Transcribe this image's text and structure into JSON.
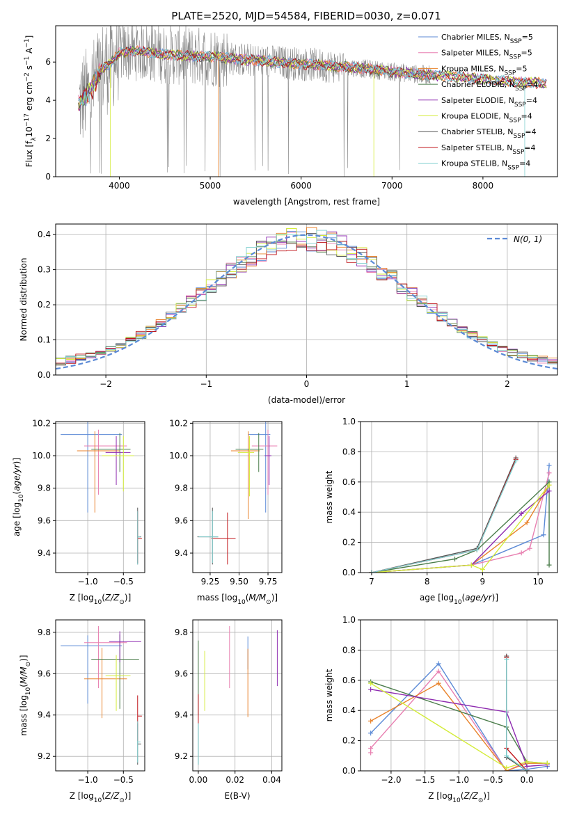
{
  "title": "PLATE=2520, MJD=54584, FIBERID=0030, z=0.071",
  "colors": [
    "#5b8ad6",
    "#e87fb0",
    "#e8822a",
    "#4a7c4a",
    "#8e2bb0",
    "#d4ec3a",
    "#555555",
    "#c0151a",
    "#7ecfcf"
  ],
  "chart_data": [
    {
      "type": "line",
      "title": "PLATE=2520, MJD=54584, FIBERID=0030, z=0.071",
      "xlabel": "wavelength [Angstrom, rest frame]",
      "ylabel": "Flux [f_λ 10^-17 erg cm^-2 s^-1 A^-1]",
      "xlim": [
        3300,
        8820
      ],
      "ylim": [
        0,
        7.9
      ],
      "xticks": [
        4000,
        5000,
        6000,
        7000,
        8000
      ],
      "yticks": [
        0,
        2,
        4,
        6
      ],
      "legend_position": "right",
      "series": [
        {
          "name": "Chabrier MILES, N_SSP=5"
        },
        {
          "name": "Salpeter MILES, N_SSP=5"
        },
        {
          "name": "Kroupa MILES, N_SSP=5"
        },
        {
          "name": "Chabrier ELODIE, N_SSP=4"
        },
        {
          "name": "Salpeter ELODIE, N_SSP=4"
        },
        {
          "name": "Kroupa ELODIE, N_SSP=4"
        },
        {
          "name": "Chabrier STELIB, N_SSP=4"
        },
        {
          "name": "Salpeter STELIB, N_SSP=4"
        },
        {
          "name": "Kroupa STELIB, N_SSP=4"
        }
      ],
      "continuum": {
        "x": [
          3550,
          3700,
          3800,
          3900,
          4000,
          4200,
          4500,
          4800,
          5000,
          5300,
          5600,
          6000,
          6300,
          6600,
          6900,
          7200,
          7500,
          7800,
          8100,
          8400,
          8650
        ],
        "y": [
          3.8,
          4.6,
          5.6,
          5.9,
          6.5,
          6.6,
          6.4,
          6.3,
          6.3,
          6.15,
          6.05,
          5.9,
          5.8,
          5.7,
          5.55,
          5.4,
          5.3,
          5.2,
          5.05,
          4.95,
          4.9
        ]
      }
    },
    {
      "type": "line",
      "xlabel": "(data-model)/error",
      "ylabel": "Normed distribution",
      "xlim": [
        -2.5,
        2.5
      ],
      "ylim": [
        0,
        0.43
      ],
      "xticks": [
        -2,
        -1,
        0,
        1,
        2
      ],
      "yticks": [
        0.0,
        0.1,
        0.2,
        0.3,
        0.4
      ],
      "legend": "N(0, 1)",
      "legend_position": "top-right",
      "bins": {
        "start": -2.5,
        "width": 0.1,
        "count": 50
      },
      "reference": {
        "mean": 0,
        "sigma": 1
      }
    },
    {
      "type": "scatter",
      "xlabel": "Z [log10(Z/Z⊙)]",
      "ylabel": "age [log10(age/yr)]",
      "xlim": [
        -1.45,
        -0.2
      ],
      "ylim": [
        9.28,
        10.21
      ],
      "xticks": [
        -1.0,
        -0.5
      ],
      "yticks": [
        9.4,
        9.6,
        9.8,
        10.0,
        10.2
      ],
      "points": [
        {
          "x": -1.0,
          "y": 10.13,
          "xerr": [
            0.38,
            0.48
          ],
          "yerr": [
            0.48,
            0.12
          ]
        },
        {
          "x": -0.85,
          "y": 10.06,
          "xerr": [
            0.2,
            0.4
          ],
          "yerr": [
            0.3,
            0.1
          ]
        },
        {
          "x": -0.9,
          "y": 10.03,
          "xerr": [
            0.25,
            0.35
          ],
          "yerr": [
            0.38,
            0.12
          ]
        },
        {
          "x": -0.55,
          "y": 10.04,
          "xerr": [
            0.4,
            0.15
          ],
          "yerr": [
            0.14,
            0.1
          ]
        },
        {
          "x": -0.6,
          "y": 10.02,
          "xerr": [
            0.15,
            0.2
          ],
          "yerr": [
            0.2,
            0.1
          ]
        },
        {
          "x": -0.5,
          "y": 10.0,
          "xerr": [
            0.3,
            0.15
          ],
          "yerr": [
            0.22,
            0.12
          ]
        },
        {
          "x": -0.3,
          "y": 9.5,
          "xerr": [
            0.0,
            0.05
          ],
          "yerr": [
            0.17,
            0.18
          ]
        },
        {
          "x": -0.3,
          "y": 9.49,
          "xerr": [
            0.0,
            0.06
          ],
          "yerr": [
            0.15,
            0.17
          ]
        },
        {
          "x": -0.3,
          "y": 9.5,
          "xerr": [
            0.0,
            0.04
          ],
          "yerr": [
            0.17,
            0.16
          ]
        }
      ]
    },
    {
      "type": "scatter",
      "xlabel": "mass [log10(M/M⊙)]",
      "ylabel": "",
      "xlim": [
        9.1,
        9.87
      ],
      "ylim": [
        9.28,
        10.21
      ],
      "xticks": [
        9.25,
        9.5,
        9.75
      ],
      "yticks": [
        9.4,
        9.6,
        9.8,
        10.0,
        10.2
      ],
      "points": [
        {
          "x": 9.73,
          "y": 10.13,
          "xerr": [
            0.15,
            0.04
          ],
          "yerr": [
            0.48,
            0.12
          ]
        },
        {
          "x": 9.75,
          "y": 10.06,
          "xerr": [
            0.14,
            0.08
          ],
          "yerr": [
            0.3,
            0.1
          ]
        },
        {
          "x": 9.58,
          "y": 10.03,
          "xerr": [
            0.15,
            0.1
          ],
          "yerr": [
            0.42,
            0.12
          ]
        },
        {
          "x": 9.67,
          "y": 10.04,
          "xerr": [
            0.2,
            0.04
          ],
          "yerr": [
            0.14,
            0.1
          ]
        },
        {
          "x": 9.76,
          "y": 10.0,
          "xerr": [
            0.04,
            0.02
          ],
          "yerr": [
            0.18,
            0.12
          ]
        },
        {
          "x": 9.59,
          "y": 10.02,
          "xerr": [
            0.1,
            0.04
          ],
          "yerr": [
            0.27,
            0.1
          ]
        },
        {
          "x": 9.27,
          "y": 9.5,
          "xerr": [
            0.13,
            0.05
          ],
          "yerr": [
            0.17,
            0.18
          ]
        },
        {
          "x": 9.4,
          "y": 9.49,
          "xerr": [
            0.14,
            0.07
          ],
          "yerr": [
            0.16,
            0.16
          ]
        },
        {
          "x": 9.27,
          "y": 9.5,
          "xerr": [
            0.12,
            0.05
          ],
          "yerr": [
            0.16,
            0.16
          ]
        }
      ]
    },
    {
      "type": "line",
      "xlabel": "age [log10(age/yr)]",
      "ylabel": "mass weight",
      "xlim": [
        6.8,
        10.35
      ],
      "ylim": [
        0,
        1
      ],
      "xticks": [
        7,
        8,
        9,
        10
      ],
      "yticks": [
        0.0,
        0.2,
        0.4,
        0.6,
        0.8,
        1.0
      ],
      "series": [
        {
          "x": [
            7.0,
            8.8,
            10.1,
            10.2
          ],
          "y": [
            0.0,
            0.05,
            0.25,
            0.71
          ]
        },
        {
          "x": [
            7.0,
            8.8,
            9.7,
            9.85,
            10.2
          ],
          "y": [
            0.0,
            0.05,
            0.13,
            0.16,
            0.66
          ]
        },
        {
          "x": [
            7.0,
            8.8,
            9.8,
            10.2
          ],
          "y": [
            0.0,
            0.05,
            0.33,
            0.58
          ]
        },
        {
          "x": [
            7.0,
            8.5,
            8.9,
            10.2,
            10.2
          ],
          "y": [
            0.0,
            0.09,
            0.15,
            0.6,
            0.05
          ]
        },
        {
          "x": [
            7.0,
            8.8,
            9.7,
            10.2
          ],
          "y": [
            0.0,
            0.05,
            0.39,
            0.54
          ]
        },
        {
          "x": [
            7.0,
            8.8,
            9.0,
            10.2
          ],
          "y": [
            0.0,
            0.05,
            0.02,
            0.58
          ]
        },
        {
          "x": [
            7.0,
            8.9,
            9.6
          ],
          "y": [
            0.0,
            0.16,
            0.76
          ]
        },
        {
          "x": [
            7.0,
            8.9,
            9.6
          ],
          "y": [
            0.0,
            0.15,
            0.75
          ]
        },
        {
          "x": [
            7.0,
            8.9,
            9.6
          ],
          "y": [
            0.0,
            0.15,
            0.74
          ]
        }
      ]
    },
    {
      "type": "scatter",
      "xlabel": "Z [log10(Z/Z⊙)]",
      "ylabel": "mass [log10(M/M⊙)]",
      "xlim": [
        -1.45,
        -0.2
      ],
      "ylim": [
        9.13,
        9.86
      ],
      "xticks": [
        -1.0,
        -0.5
      ],
      "yticks": [
        9.2,
        9.4,
        9.6,
        9.8
      ],
      "points": [
        {
          "x": -1.0,
          "y": 9.735,
          "xerr": [
            0.38,
            0.48
          ],
          "yerr": [
            0.28,
            0.05
          ]
        },
        {
          "x": -0.85,
          "y": 9.75,
          "xerr": [
            0.2,
            0.4
          ],
          "yerr": [
            0.22,
            0.08
          ]
        },
        {
          "x": -0.8,
          "y": 9.575,
          "xerr": [
            0.25,
            0.35
          ],
          "yerr": [
            0.19,
            0.15
          ]
        },
        {
          "x": -0.55,
          "y": 9.67,
          "xerr": [
            0.4,
            0.27
          ],
          "yerr": [
            0.24,
            0.12
          ]
        },
        {
          "x": -0.55,
          "y": 9.755,
          "xerr": [
            0.15,
            0.3
          ],
          "yerr": [
            0.1,
            0.05
          ]
        },
        {
          "x": -0.6,
          "y": 9.59,
          "xerr": [
            0.15,
            0.2
          ],
          "yerr": [
            0.17,
            0.1
          ]
        },
        {
          "x": -0.3,
          "y": 9.26,
          "xerr": [
            0.0,
            0.05
          ],
          "yerr": [
            0.1,
            0.1
          ]
        },
        {
          "x": -0.3,
          "y": 9.395,
          "xerr": [
            0.0,
            0.06
          ],
          "yerr": [
            0.12,
            0.1
          ]
        },
        {
          "x": -0.3,
          "y": 9.27,
          "xerr": [
            0.0,
            0.04
          ],
          "yerr": [
            0.1,
            0.1
          ]
        }
      ]
    },
    {
      "type": "scatter",
      "xlabel": "E(B-V)",
      "ylabel": "",
      "xlim": [
        -0.003,
        0.0455
      ],
      "ylim": [
        9.13,
        9.86
      ],
      "xticks": [
        0.0,
        0.02,
        0.04
      ],
      "yticks": [
        9.2,
        9.4,
        9.6,
        9.8
      ],
      "points": [
        {
          "x": 0.027,
          "y": 9.7,
          "yerr": [
            0.08,
            0.08
          ]
        },
        {
          "x": 0.017,
          "y": 9.68,
          "yerr": [
            0.15,
            0.15
          ]
        },
        {
          "x": 0.027,
          "y": 9.55,
          "yerr": [
            0.16,
            0.17
          ]
        },
        {
          "x": 0.0,
          "y": 9.58,
          "yerr": [
            0.18,
            0.18
          ]
        },
        {
          "x": 0.043,
          "y": 9.67,
          "yerr": [
            0.13,
            0.14
          ]
        },
        {
          "x": 0.0035,
          "y": 9.56,
          "yerr": [
            0.14,
            0.15
          ]
        },
        {
          "x": 0.0,
          "y": 9.26,
          "yerr": [
            0.1,
            0.1
          ]
        },
        {
          "x": 0.0,
          "y": 9.43,
          "yerr": [
            0.07,
            0.07
          ]
        },
        {
          "x": 0.0,
          "y": 9.26,
          "yerr": [
            0.1,
            0.1
          ]
        }
      ]
    },
    {
      "type": "line",
      "xlabel": "Z [log10(Z/Z⊙)]",
      "ylabel": "mass weight",
      "xlim": [
        -2.45,
        0.45
      ],
      "ylim": [
        0,
        1
      ],
      "xticks": [
        -2.0,
        -1.5,
        -1.0,
        -0.5,
        0.0
      ],
      "yticks": [
        0.0,
        0.2,
        0.4,
        0.6,
        0.8,
        1.0
      ],
      "series": [
        {
          "x": [
            -2.3,
            -1.3,
            -0.3,
            0.0,
            0.3
          ],
          "y": [
            0.25,
            0.71,
            0.0,
            0.01,
            0.03
          ]
        },
        {
          "x": [
            -2.3,
            -2.3,
            -1.3,
            -0.3,
            0.0
          ],
          "y": [
            0.12,
            0.15,
            0.66,
            0.0,
            0.06
          ]
        },
        {
          "x": [
            -2.3,
            -1.3,
            -0.3,
            0.0,
            0.3
          ],
          "y": [
            0.33,
            0.58,
            0.0,
            0.05,
            0.05
          ]
        },
        {
          "x": [
            -2.3,
            -0.3,
            0.0,
            0.3
          ],
          "y": [
            0.59,
            0.29,
            0.06,
            0.05
          ]
        },
        {
          "x": [
            -2.3,
            -0.3,
            0.0,
            0.3
          ],
          "y": [
            0.54,
            0.39,
            0.03,
            0.04
          ]
        },
        {
          "x": [
            -2.3,
            -0.3,
            0.0,
            0.3
          ],
          "y": [
            0.58,
            0.02,
            0.06,
            0.05
          ]
        },
        {
          "x": [
            -0.3,
            -0.3,
            0.0
          ],
          "y": [
            0.76,
            0.09,
            0.0
          ]
        },
        {
          "x": [
            -0.3,
            -0.3,
            0.0
          ],
          "y": [
            0.75,
            0.15,
            0.0
          ]
        },
        {
          "x": [
            -0.3,
            -0.3,
            0.0
          ],
          "y": [
            0.74,
            0.1,
            0.0
          ]
        }
      ]
    }
  ]
}
